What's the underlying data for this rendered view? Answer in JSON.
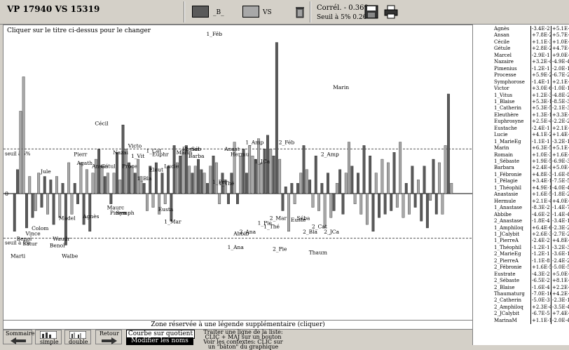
{
  "header": {
    "title": "VP 17940  VS 15319",
    "legend_b_label": "_B_",
    "legend_vs_label": "VS",
    "correl_label": "Corrél. - 0.369",
    "seuil_label": "Seuil à 5%   0.26",
    "colors": {
      "vp": "#5a5a5a",
      "vs": "#a8a8a8"
    }
  },
  "chart": {
    "instruction": "Cliquer sur le titre ci-dessus pour le changer",
    "zero_label": "0",
    "seuil_plus_label": "seuil à 5%",
    "seuil_minus_label": "seuil à 5%",
    "legend_zone": "Zone réservée à une légende supplémentaire (cliquer)"
  },
  "chart_data": {
    "type": "bar",
    "series": [
      {
        "name": "_B_"
      },
      {
        "name": "VS"
      }
    ],
    "bars": [
      {
        "v": -0.22,
        "s": "B"
      },
      {
        "v": 0.14,
        "s": "B"
      },
      {
        "v": 0.48,
        "s": "S"
      },
      {
        "v": 0.68,
        "s": "S"
      },
      {
        "v": -0.2,
        "s": "B"
      },
      {
        "v": 0.1,
        "s": "S"
      },
      {
        "v": -0.14,
        "s": "B"
      },
      {
        "v": -0.1,
        "s": "S"
      },
      {
        "v": 0.12,
        "s": "S"
      },
      {
        "v": -0.08,
        "s": "B"
      },
      {
        "v": 0.1,
        "s": "B"
      },
      {
        "v": -0.12,
        "s": "S"
      },
      {
        "v": 0.08,
        "s": "B"
      },
      {
        "v": -0.18,
        "s": "B"
      },
      {
        "v": 0.1,
        "s": "S"
      },
      {
        "v": -0.14,
        "s": "S"
      },
      {
        "v": 0.06,
        "s": "B"
      },
      {
        "v": -0.3,
        "s": "B"
      },
      {
        "v": 0.18,
        "s": "S"
      },
      {
        "v": -0.12,
        "s": "S"
      },
      {
        "v": 0.06,
        "s": "B"
      },
      {
        "v": -0.06,
        "s": "B"
      },
      {
        "v": 0.18,
        "s": "S"
      },
      {
        "v": -0.18,
        "s": "B"
      },
      {
        "v": 0.14,
        "s": "S"
      },
      {
        "v": -0.22,
        "s": "B"
      },
      {
        "v": 0.12,
        "s": "S"
      },
      {
        "v": 0.2,
        "s": "S"
      },
      {
        "v": 0.26,
        "s": "B"
      },
      {
        "v": 0.16,
        "s": "S"
      },
      {
        "v": 0.1,
        "s": "B"
      },
      {
        "v": 0.12,
        "s": "S"
      },
      {
        "v": -0.06,
        "s": "B"
      },
      {
        "v": 0.12,
        "s": "S"
      },
      {
        "v": 0.24,
        "s": "B"
      },
      {
        "v": 0.08,
        "s": "S"
      },
      {
        "v": 0.4,
        "s": "B"
      },
      {
        "v": 0.26,
        "s": "S"
      },
      {
        "v": 0.18,
        "s": "B"
      },
      {
        "v": 0.16,
        "s": "S"
      },
      {
        "v": 0.12,
        "s": "B"
      },
      {
        "v": 0.2,
        "s": "S"
      },
      {
        "v": 0.1,
        "s": "S"
      },
      {
        "v": 0.06,
        "s": "B"
      },
      {
        "v": -0.1,
        "s": "S"
      },
      {
        "v": 0.16,
        "s": "B"
      },
      {
        "v": -0.08,
        "s": "S"
      },
      {
        "v": 0.18,
        "s": "B"
      },
      {
        "v": -0.12,
        "s": "S"
      },
      {
        "v": 0.12,
        "s": "B"
      },
      {
        "v": -0.06,
        "s": "S"
      },
      {
        "v": 0.16,
        "s": "B"
      },
      {
        "v": -0.16,
        "s": "B"
      },
      {
        "v": 0.28,
        "s": "B"
      },
      {
        "v": 0.18,
        "s": "S"
      },
      {
        "v": 0.22,
        "s": "B"
      },
      {
        "v": 0.26,
        "s": "S"
      },
      {
        "v": 0.28,
        "s": "B"
      },
      {
        "v": 0.16,
        "s": "S"
      },
      {
        "v": 0.12,
        "s": "B"
      },
      {
        "v": 0.16,
        "s": "S"
      },
      {
        "v": 0.2,
        "s": "B"
      },
      {
        "v": 0.14,
        "s": "B"
      },
      {
        "v": 0.12,
        "s": "S"
      },
      {
        "v": 0.06,
        "s": "B"
      },
      {
        "v": 0.16,
        "s": "S"
      },
      {
        "v": 0.22,
        "s": "B"
      },
      {
        "v": 0.18,
        "s": "S"
      },
      {
        "v": -0.06,
        "s": "S"
      },
      {
        "v": 0.12,
        "s": "B"
      },
      {
        "v": 0.08,
        "s": "S"
      },
      {
        "v": -0.06,
        "s": "B"
      },
      {
        "v": 0.12,
        "s": "B"
      },
      {
        "v": 0.3,
        "s": "S"
      },
      {
        "v": -0.06,
        "s": "B"
      },
      {
        "v": 0.22,
        "s": "S"
      },
      {
        "v": 0.26,
        "s": "B"
      },
      {
        "v": 0.12,
        "s": "B"
      },
      {
        "v": 0.28,
        "s": "S"
      },
      {
        "v": 0.22,
        "s": "S"
      },
      {
        "v": 0.2,
        "s": "B"
      },
      {
        "v": 0.32,
        "s": "S"
      },
      {
        "v": 0.18,
        "s": "S"
      },
      {
        "v": 0.26,
        "s": "B"
      },
      {
        "v": 0.34,
        "s": "B"
      },
      {
        "v": 0.26,
        "s": "S"
      },
      {
        "v": 0.22,
        "s": "B"
      },
      {
        "v": 0.88,
        "s": "B"
      },
      {
        "v": 0.2,
        "s": "S"
      },
      {
        "v": -0.1,
        "s": "B"
      },
      {
        "v": 0.04,
        "s": "B"
      },
      {
        "v": -0.22,
        "s": "S"
      },
      {
        "v": 0.06,
        "s": "B"
      },
      {
        "v": -0.06,
        "s": "S"
      },
      {
        "v": 0.06,
        "s": "B"
      },
      {
        "v": 0.12,
        "s": "S"
      },
      {
        "v": 0.28,
        "s": "B"
      },
      {
        "v": 0.14,
        "s": "S"
      },
      {
        "v": 0.08,
        "s": "B"
      },
      {
        "v": -0.08,
        "s": "S"
      },
      {
        "v": 0.22,
        "s": "B"
      },
      {
        "v": -0.1,
        "s": "S"
      },
      {
        "v": 0.06,
        "s": "B"
      },
      {
        "v": -0.2,
        "s": "S"
      },
      {
        "v": 0.12,
        "s": "B"
      },
      {
        "v": -0.14,
        "s": "S"
      },
      {
        "v": -0.1,
        "s": "B"
      },
      {
        "v": 0.06,
        "s": "S"
      },
      {
        "v": 0.14,
        "s": "B"
      },
      {
        "v": -0.12,
        "s": "B"
      },
      {
        "v": 0.12,
        "s": "S"
      },
      {
        "v": 0.3,
        "s": "S"
      },
      {
        "v": 0.16,
        "s": "B"
      },
      {
        "v": -0.06,
        "s": "S"
      },
      {
        "v": 0.12,
        "s": "B"
      },
      {
        "v": -0.12,
        "s": "S"
      },
      {
        "v": 0.28,
        "s": "B"
      },
      {
        "v": -0.18,
        "s": "S"
      },
      {
        "v": 0.22,
        "s": "B"
      },
      {
        "v": -0.22,
        "s": "B"
      },
      {
        "v": 0.12,
        "s": "S"
      },
      {
        "v": -0.14,
        "s": "B"
      },
      {
        "v": 0.2,
        "s": "S"
      },
      {
        "v": -0.12,
        "s": "B"
      },
      {
        "v": 0.18,
        "s": "S"
      },
      {
        "v": -0.1,
        "s": "B"
      },
      {
        "v": 0.24,
        "s": "B"
      },
      {
        "v": -0.08,
        "s": "S"
      },
      {
        "v": 0.3,
        "s": "S"
      },
      {
        "v": -0.14,
        "s": "S"
      },
      {
        "v": 0.06,
        "s": "B"
      },
      {
        "v": -0.12,
        "s": "S"
      },
      {
        "v": 0.16,
        "s": "B"
      },
      {
        "v": -0.08,
        "s": "B"
      },
      {
        "v": 0.08,
        "s": "S"
      },
      {
        "v": -0.16,
        "s": "B"
      },
      {
        "v": 0.16,
        "s": "B"
      },
      {
        "v": -0.2,
        "s": "B"
      },
      {
        "v": -0.04,
        "s": "S"
      },
      {
        "v": 0.2,
        "s": "B"
      },
      {
        "v": -0.12,
        "s": "B"
      },
      {
        "v": 0.18,
        "s": "S"
      },
      {
        "v": -0.12,
        "s": "S"
      },
      {
        "v": 0.28,
        "s": "S"
      },
      {
        "v": 0.58,
        "s": "B"
      },
      {
        "v": 0.06,
        "s": "S"
      }
    ],
    "labels": [
      {
        "text": "Marti",
        "i": 0,
        "v": -0.34
      },
      {
        "text": "Benoî",
        "i": 2,
        "v": -0.24
      },
      {
        "text": "Satur",
        "i": 4,
        "v": -0.27
      },
      {
        "text": "Vince",
        "i": 5,
        "v": -0.21
      },
      {
        "text": "Colom",
        "i": 7,
        "v": -0.18
      },
      {
        "text": "Jule",
        "i": 10,
        "v": 0.11
      },
      {
        "text": "seuil à 5%",
        "i": 3,
        "v": 0.08
      },
      {
        "text": "Benoî",
        "i": 13,
        "v": -0.28
      },
      {
        "text": "Waudr",
        "i": 14,
        "v": -0.24
      },
      {
        "text": "Madel",
        "i": 16,
        "v": -0.12
      },
      {
        "text": "Walbe",
        "i": 17,
        "v": -0.34
      },
      {
        "text": "Pierr",
        "i": 21,
        "v": 0.21
      },
      {
        "text": "Agath",
        "i": 22,
        "v": 0.16
      },
      {
        "text": "Agnès",
        "i": 24,
        "v": -0.11
      },
      {
        "text": "Ansan",
        "i": 27,
        "v": 0.14
      },
      {
        "text": "Cécil",
        "i": 28,
        "v": 0.39
      },
      {
        "text": "Gétul",
        "i": 30,
        "v": 0.14
      },
      {
        "text": "Nazai",
        "i": 34,
        "v": 0.22
      },
      {
        "text": "Maurc",
        "i": 32,
        "v": -0.06
      },
      {
        "text": "Pimen",
        "i": 33,
        "v": -0.09
      },
      {
        "text": "Symph",
        "i": 35,
        "v": -0.09
      },
      {
        "text": "Proce",
        "i": 37,
        "v": 0.14
      },
      {
        "text": "Victo",
        "i": 39,
        "v": 0.26
      },
      {
        "text": "1_Vit",
        "i": 40,
        "v": 0.2
      },
      {
        "text": "1_Bla",
        "i": 42,
        "v": 0.07
      },
      {
        "text": "1_Cat",
        "i": 45,
        "v": 0.23
      },
      {
        "text": "Euphr",
        "i": 47,
        "v": 0.21
      },
      {
        "text": "Eleut",
        "i": 46,
        "v": 0.12
      },
      {
        "text": "Eusta",
        "i": 49,
        "v": -0.07
      },
      {
        "text": "1_Mar",
        "i": 51,
        "v": -0.14
      },
      {
        "text": "Lucie",
        "i": 51,
        "v": 0.14
      },
      {
        "text": "Marin",
        "i": 55,
        "v": 0.22
      },
      {
        "text": "Romai",
        "i": 57,
        "v": 0.24
      },
      {
        "text": "1_Séb",
        "i": 58,
        "v": 0.24
      },
      {
        "text": "Barba",
        "i": 59,
        "v": 0.2
      },
      {
        "text": "1_Fêb",
        "i": 65,
        "v": 0.91
      },
      {
        "text": "1_Pél",
        "i": 67,
        "v": 0.05
      },
      {
        "text": "1_Thé",
        "i": 69,
        "v": 0.04
      },
      {
        "text": "Anast",
        "i": 71,
        "v": 0.24
      },
      {
        "text": "Hermu",
        "i": 73,
        "v": 0.21
      },
      {
        "text": "1_Ana",
        "i": 72,
        "v": -0.29
      },
      {
        "text": "Abbib",
        "i": 74,
        "v": -0.21
      },
      {
        "text": "2_Ana",
        "i": 76,
        "v": -0.2
      },
      {
        "text": "1_Amp",
        "i": 78,
        "v": 0.28
      },
      {
        "text": "1_JCa",
        "i": 81,
        "v": 0.17
      },
      {
        "text": "1_Pie",
        "i": 82,
        "v": -0.15
      },
      {
        "text": "1_Thé",
        "i": 84,
        "v": -0.17
      },
      {
        "text": "2_Mar",
        "i": 86,
        "v": -0.12
      },
      {
        "text": "2_Pie",
        "i": 87,
        "v": -0.3
      },
      {
        "text": "2_Féb",
        "i": 89,
        "v": 0.28
      },
      {
        "text": "Euste",
        "i": 93,
        "v": -0.13
      },
      {
        "text": "Séba",
        "i": 95,
        "v": -0.12
      },
      {
        "text": "2_Bla",
        "i": 97,
        "v": -0.2
      },
      {
        "text": "2_Cat",
        "i": 100,
        "v": -0.17
      },
      {
        "text": "Thaum",
        "i": 99,
        "v": -0.32
      },
      {
        "text": "2_Amp",
        "i": 103,
        "v": 0.21
      },
      {
        "text": "2_JCa",
        "i": 104,
        "v": -0.2
      },
      {
        "text": "Marin",
        "i": 107,
        "v": 0.6
      }
    ],
    "ylim": [
      -0.42,
      1.0
    ],
    "seuil": 0.26
  },
  "bottom": {
    "sommaire_label": "Sommaire",
    "simple_label": "simple",
    "double_label": "double",
    "retour_label": "Retour",
    "courbe_label": "Courbe sur quotient",
    "modifier_label": "Modifier les noms",
    "info1": "Traiter une ligne de la liste:",
    "info2": "CLIC + MAJ sur un bouton",
    "info3": "Voir les contextes: CLIC sur",
    "info4": "un \"bâton\" du graphique"
  },
  "list": [
    [
      "Agnès",
      "-3.4E-2",
      "+5.1E-2"
    ],
    [
      "Ansan",
      "+7.8E-2",
      "+5.7E-2"
    ],
    [
      "Cécile",
      "+1.1E-3",
      "+1.0E-1"
    ],
    [
      "Gétule",
      "+2.8E-2",
      "+4.7E-1"
    ],
    [
      "Marcel",
      "-2.9E-1",
      "+9.0E-2"
    ],
    [
      "Nazaire",
      "+3.2E-4",
      "-4.9E-4"
    ],
    [
      "Pimenius",
      "-1.2E-1",
      "-2.0E-1"
    ],
    [
      "Processe",
      "+5.9E-2",
      "-6.7E-2"
    ],
    [
      "Symphorose",
      "-1.4E-1",
      "+2.1E-1"
    ],
    [
      "Victor",
      "+3.0E-6",
      "-1.0E-1"
    ],
    [
      "1_Vitus",
      "+1.2E-3",
      "-4.8E-2"
    ],
    [
      "1_Blaise",
      "+5.3E-1",
      "-8.5E-3"
    ],
    [
      "1_Catherin",
      "+5.3E-5",
      "-2.1E-3"
    ],
    [
      "Eleuthère",
      "+1.3E-1",
      "+3.3E-2"
    ],
    [
      "Euphrosyne",
      "+2.5E-4",
      "-2.2E-2"
    ],
    [
      "Eustache",
      "-2.4E-1",
      "+2.1E-1"
    ],
    [
      "Lucie",
      "+4.1E-2",
      "+1.4E-1"
    ],
    [
      "1_MarieEg",
      "-1.1E-1",
      "-3.2E-1"
    ],
    [
      "Marin",
      "+6.3E-5",
      "+5.1E-1"
    ],
    [
      "Romain",
      "+1.0E-3",
      "+1.6E-5"
    ],
    [
      "1_Sébaste",
      "+1.9E-5",
      "-6.9E-3"
    ],
    [
      "Barbara",
      "+2.4E-4",
      "+5.0E-1"
    ],
    [
      "1_Fébronie",
      "+4.8E-3",
      "-1.6E-8"
    ],
    [
      "1_Pélagie",
      "+3.4E-1",
      "-7.5E-5"
    ],
    [
      "1_Théophil",
      "+4.9E-1",
      "-4.0E-4"
    ],
    [
      "Anastasie",
      "+1.6E-5",
      "-1.8E-2"
    ],
    [
      "Hermule",
      "+2.1E-4",
      "+4.0E-1"
    ],
    [
      "1_Anastase",
      "-8.3E-2",
      "-1.4E-7"
    ],
    [
      "Abbibe",
      "-4.6E-2",
      "-1.4E-4"
    ],
    [
      "2_Anastase",
      "-1.8E-4",
      "-3.4E-1"
    ],
    [
      "1_Amphiloq",
      "+6.4E-6",
      "-2.3E-2"
    ],
    [
      "1_JCalybit",
      "+2.6E-3",
      "-2.7E-2"
    ],
    [
      "1_PierreA",
      "-2.4E-2",
      "+4.8E-1"
    ],
    [
      "1_Théophil",
      "-1.2E-1",
      "-3.2E-3"
    ],
    [
      "2_MarieEg",
      "-1.2E-1",
      "-3.6E-1"
    ],
    [
      "2_PierreA",
      "-1.1E-8",
      "-2.4E-2"
    ],
    [
      "2_Fébronie",
      "+1.6E-5",
      "-5.0E-5"
    ],
    [
      "Eustrate",
      "-4.3E-2",
      "+5.0E-1"
    ],
    [
      "2_Sébaste",
      "-6.5E-2",
      "+8.1E-2"
    ],
    [
      "2_Blaise",
      "-1.6E-4",
      "+2.2E-3"
    ],
    [
      "Thaumaturg",
      "-7.0E-16",
      "+4.2E-2"
    ],
    [
      "2_Catherin",
      "-5.0E-3",
      "-2.3E-1"
    ],
    [
      "2_Amphiloq",
      "+2.3E-4",
      "-3.5E-4"
    ],
    [
      "2_JCalybit",
      "-6.7E-5",
      "+7.4E-2"
    ],
    [
      "MarinaM",
      "+1.1E-1",
      "-2.0E-4"
    ]
  ]
}
